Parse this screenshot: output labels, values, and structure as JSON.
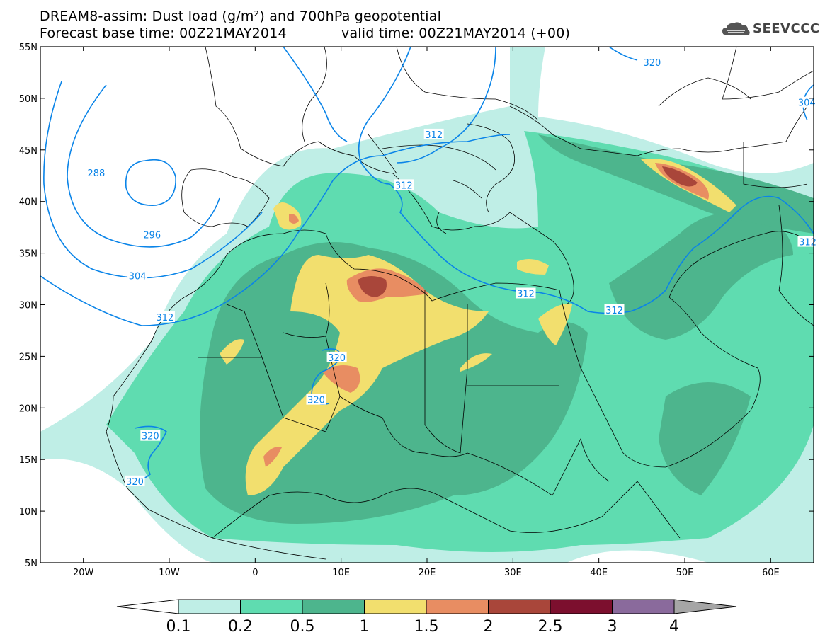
{
  "title": {
    "line1": "DREAM8-assim: Dust load (g/m²) and 700hPa geopotential",
    "line2_base": "Forecast base time: 00Z21MAY2014",
    "line2_valid": "valid time: 00Z21MAY2014 (+00)"
  },
  "logo": {
    "text": "SEEVCCC",
    "icon": "cloud-icon"
  },
  "map": {
    "lat_range": [
      5,
      55
    ],
    "lon_range": [
      -25,
      65
    ],
    "lat_ticks": [
      "55N",
      "50N",
      "45N",
      "40N",
      "35N",
      "30N",
      "25N",
      "20N",
      "15N",
      "10N",
      "5N"
    ],
    "lon_ticks": [
      "20W",
      "10W",
      "0",
      "10E",
      "20E",
      "30E",
      "40E",
      "50E",
      "60E"
    ],
    "contour_labels": [
      {
        "text": "288",
        "lon": -18.5,
        "lat": 42.8
      },
      {
        "text": "296",
        "lon": -12,
        "lat": 36.8
      },
      {
        "text": "304",
        "lon": -13.7,
        "lat": 32.8
      },
      {
        "text": "312",
        "lon": -10.5,
        "lat": 28.8
      },
      {
        "text": "312",
        "lon": 20.8,
        "lat": 46.5
      },
      {
        "text": "312",
        "lon": 17.3,
        "lat": 41.6
      },
      {
        "text": "312",
        "lon": 31.5,
        "lat": 31.1
      },
      {
        "text": "312",
        "lon": 41.8,
        "lat": 29.5
      },
      {
        "text": "320",
        "lon": 9.5,
        "lat": 24.9
      },
      {
        "text": "320",
        "lon": 7.1,
        "lat": 20.8
      },
      {
        "text": "320",
        "lon": -12.2,
        "lat": 17.3
      },
      {
        "text": "320",
        "lon": -14,
        "lat": 12.9
      },
      {
        "text": "320",
        "lon": 46.2,
        "lat": 53.5
      },
      {
        "text": "304",
        "lon": 64.2,
        "lat": 49.6
      },
      {
        "text": "312",
        "lon": 64.3,
        "lat": 36.1
      }
    ]
  },
  "colorbar": {
    "levels": [
      "0.1",
      "0.2",
      "0.5",
      "1",
      "1.5",
      "2",
      "2.5",
      "3",
      "4"
    ],
    "colors": [
      "#ffffff",
      "#bfeee6",
      "#5fdcb0",
      "#4db58d",
      "#f2df6e",
      "#e88d62",
      "#a9463a",
      "#7c0f2e",
      "#8a6a9c",
      "#a6a6a6"
    ]
  }
}
